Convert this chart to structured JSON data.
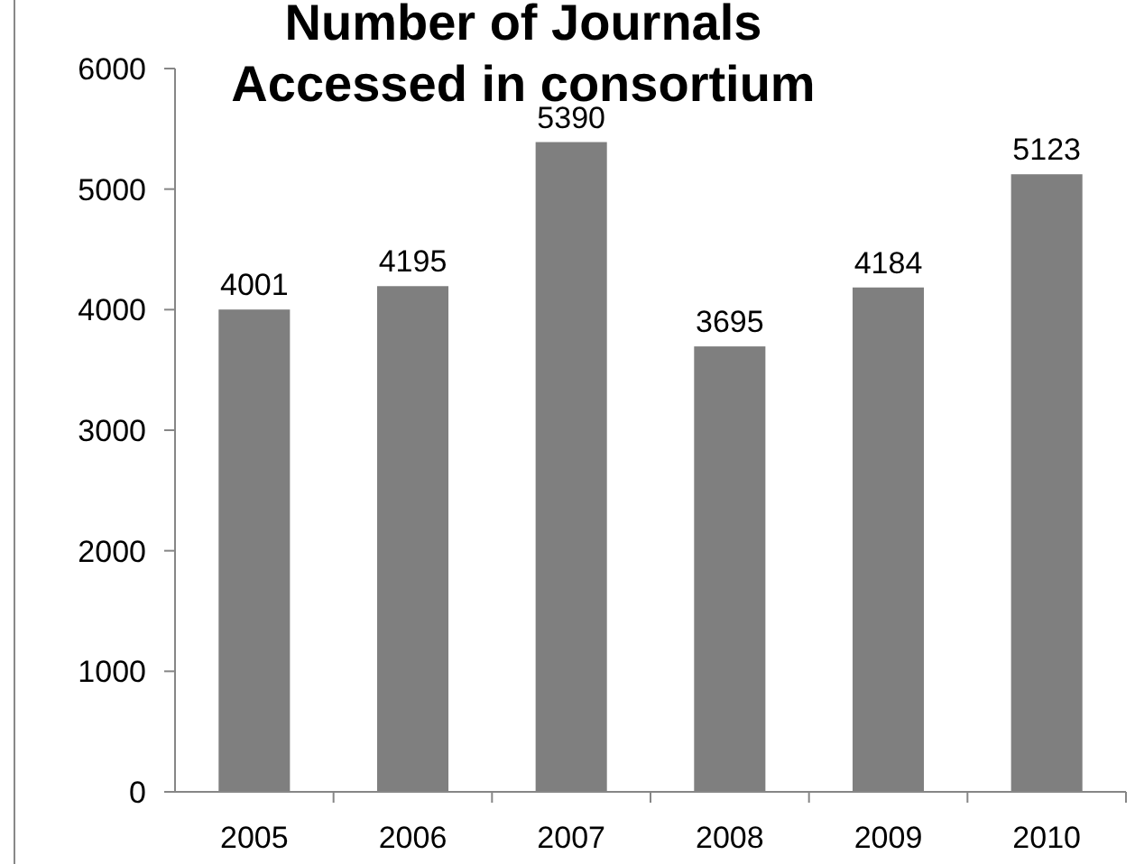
{
  "chart_data": {
    "type": "bar",
    "title": "Number of Journals Accessed in consortium",
    "categories": [
      "2005",
      "2006",
      "2007",
      "2008",
      "2009",
      "2010"
    ],
    "values": [
      4001,
      4195,
      5390,
      3695,
      4184,
      5123
    ],
    "color": "#7f7f7f",
    "ylim": [
      0,
      6000
    ],
    "yticks": [
      0,
      1000,
      2000,
      3000,
      4000,
      5000,
      6000
    ],
    "grid": false,
    "data_labels": true
  }
}
